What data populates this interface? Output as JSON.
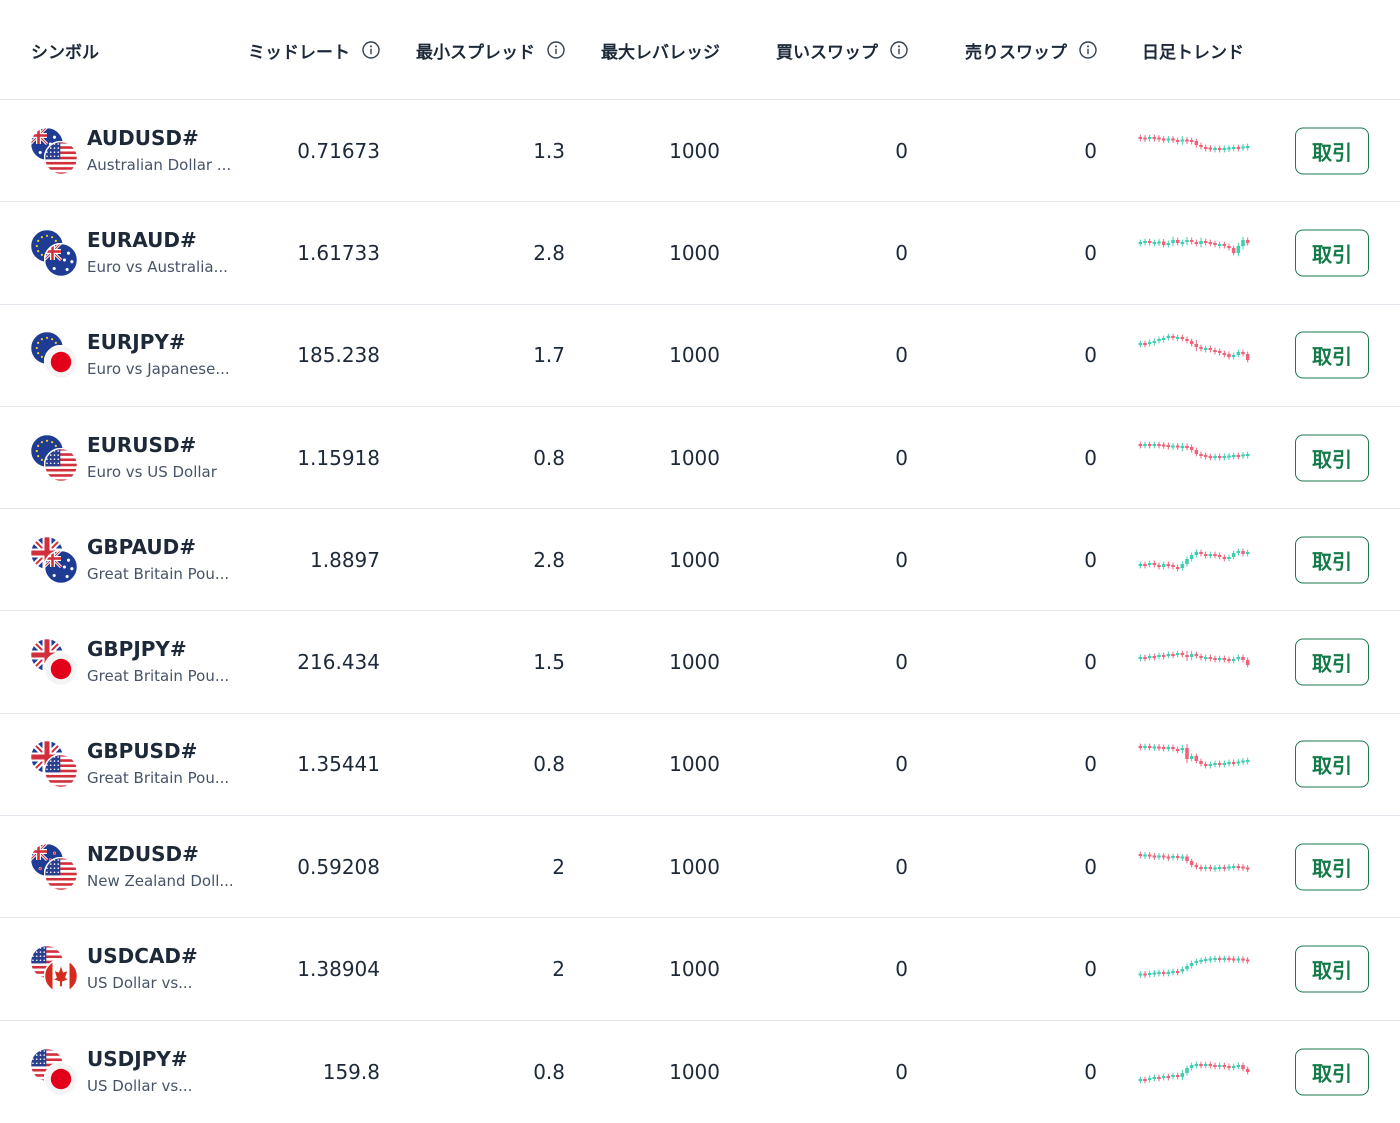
{
  "colors": {
    "accent": "#137a48",
    "up": "#3ccfb0",
    "down": "#f2617a",
    "border": "#e4e7ec",
    "text": "#1d2939",
    "muted": "#475467"
  },
  "header": {
    "symbol": "シンボル",
    "mid_rate": "ミッドレート",
    "min_spread": "最小スプレッド",
    "max_leverage": "最大レバレッジ",
    "buy_swap": "買いスワップ",
    "sell_swap": "売りスワップ",
    "daily_trend": "日足トレンド"
  },
  "rows": [
    {
      "symbol": "AUDUSD#",
      "name": "Australian Dollar ...",
      "mid": "0.71673",
      "spread": "1.3",
      "leverage": "1000",
      "buy_swap": "0",
      "sell_swap": "0",
      "trade": "取引",
      "flags": [
        "AU",
        "US"
      ],
      "trend": [
        [
          0.78,
          0.77,
          0.3
        ],
        [
          0.77,
          0.76,
          0.3
        ],
        [
          0.76,
          0.78,
          0.3
        ],
        [
          0.78,
          0.77,
          0.3
        ],
        [
          0.77,
          0.75,
          0.3
        ],
        [
          0.75,
          0.73,
          0.3
        ],
        [
          0.73,
          0.75,
          0.3
        ],
        [
          0.75,
          0.72,
          0.3
        ],
        [
          0.72,
          0.71,
          0.3
        ],
        [
          0.71,
          0.73,
          0.4
        ],
        [
          0.73,
          0.72,
          0.3
        ],
        [
          0.72,
          0.7,
          0.3
        ],
        [
          0.7,
          0.62,
          0.3
        ],
        [
          0.62,
          0.58,
          0.3
        ],
        [
          0.58,
          0.57,
          0.3
        ],
        [
          0.57,
          0.55,
          0.3
        ],
        [
          0.55,
          0.56,
          0.3
        ],
        [
          0.56,
          0.55,
          0.3
        ],
        [
          0.55,
          0.56,
          0.3
        ],
        [
          0.56,
          0.57,
          0.3
        ],
        [
          0.57,
          0.58,
          0.3
        ],
        [
          0.58,
          0.57,
          0.3
        ],
        [
          0.57,
          0.59,
          0.3
        ],
        [
          0.59,
          0.6,
          0.3
        ]
      ]
    },
    {
      "symbol": "EURAUD#",
      "name": "Euro vs Australia...",
      "mid": "1.61733",
      "spread": "2.8",
      "leverage": "1000",
      "buy_swap": "0",
      "sell_swap": "0",
      "trade": "取引",
      "flags": [
        "EU",
        "AU"
      ],
      "trend": [
        [
          0.7,
          0.72,
          0.3
        ],
        [
          0.72,
          0.74,
          0.3
        ],
        [
          0.74,
          0.7,
          0.3
        ],
        [
          0.7,
          0.72,
          0.3
        ],
        [
          0.72,
          0.73,
          0.3
        ],
        [
          0.73,
          0.66,
          0.3
        ],
        [
          0.66,
          0.7,
          0.3
        ],
        [
          0.7,
          0.76,
          0.4
        ],
        [
          0.76,
          0.7,
          0.3
        ],
        [
          0.7,
          0.72,
          0.3
        ],
        [
          0.72,
          0.76,
          0.4
        ],
        [
          0.76,
          0.72,
          0.3
        ],
        [
          0.72,
          0.68,
          0.3
        ],
        [
          0.68,
          0.74,
          0.4
        ],
        [
          0.74,
          0.72,
          0.3
        ],
        [
          0.72,
          0.7,
          0.3
        ],
        [
          0.7,
          0.66,
          0.3
        ],
        [
          0.66,
          0.68,
          0.3
        ],
        [
          0.68,
          0.64,
          0.3
        ],
        [
          0.64,
          0.6,
          0.3
        ],
        [
          0.6,
          0.5,
          0.3
        ],
        [
          0.5,
          0.64,
          0.4
        ],
        [
          0.64,
          0.76,
          0.4
        ],
        [
          0.76,
          0.7,
          0.3
        ]
      ]
    },
    {
      "symbol": "EURJPY#",
      "name": "Euro vs Japanese...",
      "mid": "185.238",
      "spread": "1.7",
      "leverage": "1000",
      "buy_swap": "0",
      "sell_swap": "0",
      "trade": "取引",
      "flags": [
        "EU",
        "JP"
      ],
      "trend": [
        [
          0.72,
          0.74,
          0.3
        ],
        [
          0.74,
          0.73,
          0.3
        ],
        [
          0.73,
          0.76,
          0.3
        ],
        [
          0.76,
          0.78,
          0.3
        ],
        [
          0.78,
          0.82,
          0.3
        ],
        [
          0.82,
          0.84,
          0.3
        ],
        [
          0.84,
          0.88,
          0.3
        ],
        [
          0.88,
          0.84,
          0.3
        ],
        [
          0.84,
          0.86,
          0.3
        ],
        [
          0.86,
          0.82,
          0.3
        ],
        [
          0.82,
          0.78,
          0.3
        ],
        [
          0.78,
          0.72,
          0.3
        ],
        [
          0.72,
          0.66,
          0.5
        ],
        [
          0.66,
          0.62,
          0.3
        ],
        [
          0.62,
          0.64,
          0.3
        ],
        [
          0.64,
          0.6,
          0.3
        ],
        [
          0.6,
          0.58,
          0.3
        ],
        [
          0.58,
          0.54,
          0.3
        ],
        [
          0.54,
          0.52,
          0.3
        ],
        [
          0.52,
          0.46,
          0.3
        ],
        [
          0.46,
          0.5,
          0.3
        ],
        [
          0.5,
          0.56,
          0.3
        ],
        [
          0.56,
          0.52,
          0.3
        ],
        [
          0.52,
          0.4,
          0.3
        ]
      ]
    },
    {
      "symbol": "EURUSD#",
      "name": "Euro vs US Dollar",
      "mid": "1.15918",
      "spread": "0.8",
      "leverage": "1000",
      "buy_swap": "0",
      "sell_swap": "0",
      "trade": "取引",
      "flags": [
        "EU",
        "US"
      ],
      "trend": [
        [
          0.78,
          0.77,
          0.3
        ],
        [
          0.77,
          0.78,
          0.3
        ],
        [
          0.78,
          0.77,
          0.3
        ],
        [
          0.77,
          0.78,
          0.3
        ],
        [
          0.78,
          0.77,
          0.3
        ],
        [
          0.77,
          0.76,
          0.3
        ],
        [
          0.76,
          0.74,
          0.3
        ],
        [
          0.74,
          0.75,
          0.3
        ],
        [
          0.75,
          0.72,
          0.3
        ],
        [
          0.72,
          0.74,
          0.4
        ],
        [
          0.74,
          0.72,
          0.3
        ],
        [
          0.72,
          0.66,
          0.3
        ],
        [
          0.66,
          0.58,
          0.3
        ],
        [
          0.58,
          0.56,
          0.3
        ],
        [
          0.56,
          0.54,
          0.3
        ],
        [
          0.54,
          0.53,
          0.3
        ],
        [
          0.53,
          0.54,
          0.3
        ],
        [
          0.54,
          0.53,
          0.3
        ],
        [
          0.53,
          0.54,
          0.3
        ],
        [
          0.54,
          0.55,
          0.3
        ],
        [
          0.55,
          0.56,
          0.3
        ],
        [
          0.56,
          0.55,
          0.3
        ],
        [
          0.55,
          0.57,
          0.3
        ],
        [
          0.57,
          0.58,
          0.3
        ]
      ]
    },
    {
      "symbol": "GBPAUD#",
      "name": "Great Britain Pou...",
      "mid": "1.8897",
      "spread": "2.8",
      "leverage": "1000",
      "buy_swap": "0",
      "sell_swap": "0",
      "trade": "取引",
      "flags": [
        "GB",
        "AU"
      ],
      "trend": [
        [
          0.4,
          0.42,
          0.3
        ],
        [
          0.42,
          0.4,
          0.3
        ],
        [
          0.4,
          0.44,
          0.3
        ],
        [
          0.44,
          0.4,
          0.3
        ],
        [
          0.4,
          0.36,
          0.3
        ],
        [
          0.36,
          0.42,
          0.3
        ],
        [
          0.42,
          0.4,
          0.3
        ],
        [
          0.4,
          0.36,
          0.3
        ],
        [
          0.36,
          0.34,
          0.3
        ],
        [
          0.34,
          0.42,
          0.3
        ],
        [
          0.42,
          0.52,
          0.3
        ],
        [
          0.52,
          0.6,
          0.3
        ],
        [
          0.6,
          0.66,
          0.3
        ],
        [
          0.66,
          0.62,
          0.3
        ],
        [
          0.62,
          0.58,
          0.3
        ],
        [
          0.58,
          0.62,
          0.3
        ],
        [
          0.62,
          0.6,
          0.3
        ],
        [
          0.6,
          0.56,
          0.3
        ],
        [
          0.56,
          0.52,
          0.3
        ],
        [
          0.52,
          0.56,
          0.3
        ],
        [
          0.56,
          0.64,
          0.3
        ],
        [
          0.64,
          0.68,
          0.3
        ],
        [
          0.68,
          0.62,
          0.3
        ],
        [
          0.62,
          0.66,
          0.3
        ]
      ]
    },
    {
      "symbol": "GBPJPY#",
      "name": "Great Britain Pou...",
      "mid": "216.434",
      "spread": "1.5",
      "leverage": "1000",
      "buy_swap": "0",
      "sell_swap": "0",
      "trade": "取引",
      "flags": [
        "GB",
        "JP"
      ],
      "trend": [
        [
          0.58,
          0.6,
          0.3
        ],
        [
          0.6,
          0.58,
          0.3
        ],
        [
          0.58,
          0.62,
          0.3
        ],
        [
          0.62,
          0.6,
          0.3
        ],
        [
          0.6,
          0.64,
          0.3
        ],
        [
          0.64,
          0.62,
          0.3
        ],
        [
          0.62,
          0.66,
          0.3
        ],
        [
          0.66,
          0.64,
          0.3
        ],
        [
          0.64,
          0.68,
          0.3
        ],
        [
          0.68,
          0.64,
          0.3
        ],
        [
          0.64,
          0.6,
          0.5
        ],
        [
          0.6,
          0.66,
          0.4
        ],
        [
          0.66,
          0.62,
          0.3
        ],
        [
          0.62,
          0.58,
          0.3
        ],
        [
          0.58,
          0.6,
          0.3
        ],
        [
          0.6,
          0.58,
          0.3
        ],
        [
          0.58,
          0.56,
          0.3
        ],
        [
          0.56,
          0.58,
          0.3
        ],
        [
          0.58,
          0.56,
          0.3
        ],
        [
          0.56,
          0.52,
          0.3
        ],
        [
          0.52,
          0.56,
          0.3
        ],
        [
          0.56,
          0.6,
          0.3
        ],
        [
          0.6,
          0.54,
          0.3
        ],
        [
          0.54,
          0.44,
          0.3
        ]
      ]
    },
    {
      "symbol": "GBPUSD#",
      "name": "Great Britain Pou...",
      "mid": "1.35441",
      "spread": "0.8",
      "leverage": "1000",
      "buy_swap": "0",
      "sell_swap": "0",
      "trade": "取引",
      "flags": [
        "GB",
        "US"
      ],
      "trend": [
        [
          0.86,
          0.85,
          0.3
        ],
        [
          0.85,
          0.86,
          0.3
        ],
        [
          0.86,
          0.84,
          0.3
        ],
        [
          0.84,
          0.85,
          0.3
        ],
        [
          0.85,
          0.84,
          0.3
        ],
        [
          0.84,
          0.82,
          0.3
        ],
        [
          0.82,
          0.84,
          0.3
        ],
        [
          0.84,
          0.8,
          0.3
        ],
        [
          0.8,
          0.78,
          0.3
        ],
        [
          0.78,
          0.82,
          0.4
        ],
        [
          0.82,
          0.6,
          0.5
        ],
        [
          0.6,
          0.66,
          0.3
        ],
        [
          0.66,
          0.56,
          0.3
        ],
        [
          0.56,
          0.5,
          0.3
        ],
        [
          0.5,
          0.48,
          0.3
        ],
        [
          0.48,
          0.5,
          0.3
        ],
        [
          0.5,
          0.52,
          0.3
        ],
        [
          0.52,
          0.5,
          0.3
        ],
        [
          0.5,
          0.52,
          0.3
        ],
        [
          0.52,
          0.54,
          0.3
        ],
        [
          0.54,
          0.52,
          0.3
        ],
        [
          0.52,
          0.55,
          0.3
        ],
        [
          0.55,
          0.57,
          0.3
        ],
        [
          0.57,
          0.58,
          0.3
        ]
      ]
    },
    {
      "symbol": "NZDUSD#",
      "name": "New Zealand Doll...",
      "mid": "0.59208",
      "spread": "2",
      "leverage": "1000",
      "buy_swap": "0",
      "sell_swap": "0",
      "trade": "取引",
      "flags": [
        "NZ",
        "US"
      ],
      "trend": [
        [
          0.76,
          0.74,
          0.3
        ],
        [
          0.74,
          0.75,
          0.3
        ],
        [
          0.75,
          0.73,
          0.3
        ],
        [
          0.73,
          0.72,
          0.3
        ],
        [
          0.72,
          0.73,
          0.3
        ],
        [
          0.73,
          0.71,
          0.3
        ],
        [
          0.71,
          0.7,
          0.3
        ],
        [
          0.7,
          0.72,
          0.3
        ],
        [
          0.72,
          0.69,
          0.3
        ],
        [
          0.69,
          0.71,
          0.3
        ],
        [
          0.71,
          0.62,
          0.3
        ],
        [
          0.62,
          0.54,
          0.3
        ],
        [
          0.54,
          0.5,
          0.3
        ],
        [
          0.5,
          0.49,
          0.3
        ],
        [
          0.49,
          0.5,
          0.3
        ],
        [
          0.5,
          0.48,
          0.3
        ],
        [
          0.48,
          0.49,
          0.3
        ],
        [
          0.49,
          0.5,
          0.3
        ],
        [
          0.5,
          0.49,
          0.3
        ],
        [
          0.49,
          0.51,
          0.3
        ],
        [
          0.51,
          0.52,
          0.3
        ],
        [
          0.52,
          0.51,
          0.3
        ],
        [
          0.51,
          0.49,
          0.3
        ],
        [
          0.49,
          0.46,
          0.3
        ]
      ]
    },
    {
      "symbol": "USDCAD#",
      "name": "US Dollar vs...",
      "mid": "1.38904",
      "spread": "2",
      "leverage": "1000",
      "buy_swap": "0",
      "sell_swap": "0",
      "trade": "取引",
      "flags": [
        "US",
        "CA"
      ],
      "trend": [
        [
          0.4,
          0.41,
          0.3
        ],
        [
          0.41,
          0.4,
          0.3
        ],
        [
          0.4,
          0.42,
          0.3
        ],
        [
          0.42,
          0.43,
          0.3
        ],
        [
          0.43,
          0.44,
          0.3
        ],
        [
          0.44,
          0.42,
          0.3
        ],
        [
          0.42,
          0.44,
          0.3
        ],
        [
          0.44,
          0.46,
          0.3
        ],
        [
          0.46,
          0.45,
          0.3
        ],
        [
          0.45,
          0.5,
          0.3
        ],
        [
          0.5,
          0.56,
          0.3
        ],
        [
          0.56,
          0.62,
          0.3
        ],
        [
          0.62,
          0.66,
          0.3
        ],
        [
          0.66,
          0.68,
          0.3
        ],
        [
          0.68,
          0.7,
          0.3
        ],
        [
          0.7,
          0.71,
          0.3
        ],
        [
          0.71,
          0.72,
          0.3
        ],
        [
          0.72,
          0.71,
          0.3
        ],
        [
          0.71,
          0.72,
          0.3
        ],
        [
          0.72,
          0.71,
          0.3
        ],
        [
          0.71,
          0.7,
          0.3
        ],
        [
          0.7,
          0.71,
          0.3
        ],
        [
          0.71,
          0.69,
          0.3
        ],
        [
          0.69,
          0.68,
          0.3
        ]
      ]
    },
    {
      "symbol": "USDJPY#",
      "name": "US Dollar vs...",
      "mid": "159.8",
      "spread": "0.8",
      "leverage": "1000",
      "buy_swap": "0",
      "sell_swap": "0",
      "trade": "取引",
      "flags": [
        "US",
        "JP"
      ],
      "trend": [
        [
          0.34,
          0.36,
          0.3
        ],
        [
          0.36,
          0.34,
          0.3
        ],
        [
          0.34,
          0.38,
          0.3
        ],
        [
          0.38,
          0.4,
          0.3
        ],
        [
          0.4,
          0.38,
          0.3
        ],
        [
          0.38,
          0.42,
          0.3
        ],
        [
          0.42,
          0.4,
          0.3
        ],
        [
          0.4,
          0.44,
          0.3
        ],
        [
          0.44,
          0.4,
          0.3
        ],
        [
          0.4,
          0.48,
          0.4
        ],
        [
          0.48,
          0.58,
          0.3
        ],
        [
          0.58,
          0.64,
          0.3
        ],
        [
          0.64,
          0.66,
          0.3
        ],
        [
          0.66,
          0.64,
          0.3
        ],
        [
          0.64,
          0.66,
          0.3
        ],
        [
          0.66,
          0.64,
          0.3
        ],
        [
          0.64,
          0.62,
          0.3
        ],
        [
          0.62,
          0.64,
          0.3
        ],
        [
          0.64,
          0.62,
          0.3
        ],
        [
          0.62,
          0.6,
          0.3
        ],
        [
          0.6,
          0.62,
          0.3
        ],
        [
          0.62,
          0.64,
          0.3
        ],
        [
          0.64,
          0.56,
          0.3
        ],
        [
          0.56,
          0.5,
          0.3
        ]
      ]
    }
  ]
}
